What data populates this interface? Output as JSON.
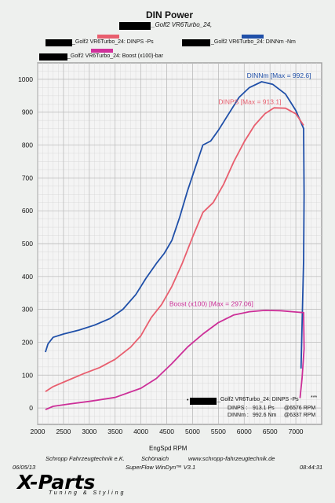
{
  "header": {
    "title": "DIN Power",
    "subtitle": "_Golf2 VR6Turbo_24,",
    "legend_top": [
      {
        "label": "_Golf2 VR6Turbo_24: DINPS -Ps",
        "color": "#e85e6e"
      },
      {
        "label": "_Golf2 VR6Turbo_24: DINNm -Nm",
        "color": "#2050a8"
      },
      {
        "label": "_Golf2 VR6Turbo_24: Boost (x100)-bar",
        "color": "#d0309a"
      }
    ]
  },
  "chart_data": {
    "type": "line",
    "xlabel": "EngSpd RPM",
    "xlim": [
      2000,
      7500
    ],
    "ylim": [
      -50,
      1050
    ],
    "x_ticks": [
      "2000",
      "2500",
      "3000",
      "3500",
      "4000",
      "4500",
      "5000",
      "5500",
      "6000",
      "6500",
      "7000"
    ],
    "y_ticks": [
      "0",
      "100",
      "200",
      "300",
      "400",
      "500",
      "600",
      "700",
      "800",
      "900",
      "1000"
    ],
    "grid": true,
    "series": [
      {
        "name": "DINNm",
        "color": "#1f4fa8",
        "label": "DINNm  [Max = 992.6]",
        "points": [
          [
            2150,
            170
          ],
          [
            2200,
            195
          ],
          [
            2300,
            215
          ],
          [
            2500,
            225
          ],
          [
            2800,
            237
          ],
          [
            3100,
            252
          ],
          [
            3400,
            272
          ],
          [
            3650,
            300
          ],
          [
            3900,
            345
          ],
          [
            4100,
            395
          ],
          [
            4300,
            440
          ],
          [
            4450,
            470
          ],
          [
            4600,
            510
          ],
          [
            4750,
            580
          ],
          [
            4900,
            660
          ],
          [
            5050,
            730
          ],
          [
            5200,
            800
          ],
          [
            5350,
            812
          ],
          [
            5500,
            845
          ],
          [
            5700,
            895
          ],
          [
            5900,
            945
          ],
          [
            6100,
            975
          ],
          [
            6337,
            992.6
          ],
          [
            6550,
            985
          ],
          [
            6800,
            955
          ],
          [
            7000,
            905
          ],
          [
            7150,
            850
          ],
          [
            7160,
            650
          ],
          [
            7150,
            450
          ],
          [
            7120,
            250
          ],
          [
            7100,
            120
          ]
        ]
      },
      {
        "name": "DINPS",
        "color": "#e85e6e",
        "label": "DINPS  [Max = 913.1]",
        "points": [
          [
            2150,
            50
          ],
          [
            2300,
            65
          ],
          [
            2600,
            85
          ],
          [
            2900,
            105
          ],
          [
            3200,
            123
          ],
          [
            3500,
            148
          ],
          [
            3800,
            185
          ],
          [
            4000,
            220
          ],
          [
            4200,
            275
          ],
          [
            4400,
            315
          ],
          [
            4600,
            370
          ],
          [
            4800,
            440
          ],
          [
            5000,
            520
          ],
          [
            5200,
            595
          ],
          [
            5400,
            625
          ],
          [
            5600,
            680
          ],
          [
            5800,
            750
          ],
          [
            6000,
            810
          ],
          [
            6200,
            860
          ],
          [
            6400,
            895
          ],
          [
            6576,
            913.1
          ],
          [
            6800,
            912
          ],
          [
            7000,
            895
          ],
          [
            7150,
            860
          ]
        ]
      },
      {
        "name": "Boost (x100)",
        "color": "#cc2f98",
        "label": "Boost (x100) [Max = 297.06]",
        "points": [
          [
            2150,
            -5
          ],
          [
            2300,
            5
          ],
          [
            2600,
            12
          ],
          [
            3000,
            20
          ],
          [
            3500,
            32
          ],
          [
            4000,
            60
          ],
          [
            4300,
            90
          ],
          [
            4600,
            135
          ],
          [
            4900,
            185
          ],
          [
            5200,
            225
          ],
          [
            5500,
            260
          ],
          [
            5800,
            283
          ],
          [
            6100,
            293
          ],
          [
            6400,
            297.06
          ],
          [
            6700,
            296
          ],
          [
            7000,
            292
          ],
          [
            7150,
            290
          ],
          [
            7160,
            180
          ],
          [
            7120,
            90
          ],
          [
            7080,
            30
          ]
        ]
      }
    ],
    "annotation_box": {
      "legend": "_Golf2 VR6Turbo_24: DINPS -Ps",
      "dots": "***",
      "line1_label": "DINPS :",
      "line1_value": "913.1 Ps",
      "line1_at": "@6576 RPM",
      "line2_label": "DINNm :",
      "line2_value": "992.6 Nm",
      "line2_at": "@6337 RPM"
    }
  },
  "footer": {
    "company": "Schropp Fahrzeugtechnik e.K.",
    "city": "Schönaich",
    "website": "www.schropp-fahrzeugtechnik.de",
    "date": "06/05/13",
    "software": "SuperFlow WinDyn™ V3.1",
    "time": "08:44:31",
    "logo": "X-Parts",
    "logo_sub": "Tuning & Styling"
  }
}
